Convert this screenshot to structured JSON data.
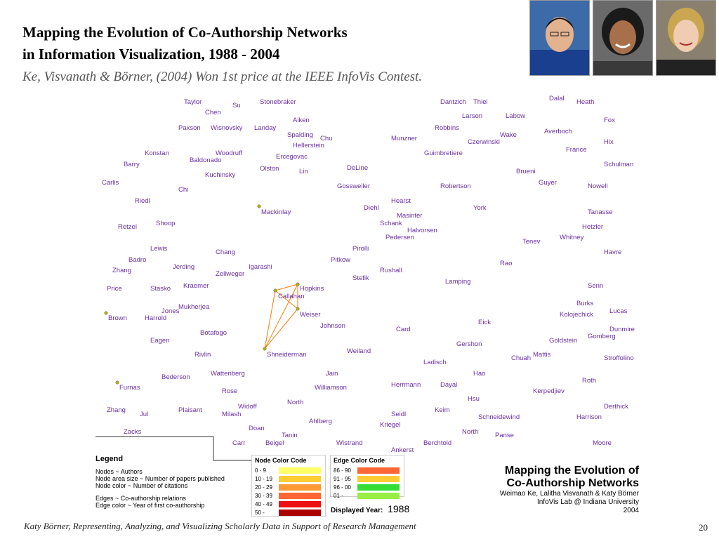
{
  "slide": {
    "title_line1": "Mapping the Evolution of  Co-Authorship Networks",
    "title_line2": "in Information Visualization, 1988 - 2004",
    "subtitle": "Ke, Visvanath & Börner, (2004) Won 1st price at the IEEE InfoVis Contest.",
    "footer": "Katy Börner, Representing, Analyzing, and Visualizing Scholarly Data in Support of  Research Management",
    "page_number": "20"
  },
  "colors": {
    "author_label": "#6b2fa3",
    "edge": "#ff7a00",
    "node": "#b8b400"
  },
  "authors": [
    "Taylor",
    "Su",
    "Stonebraker",
    "Dantzich",
    "Thiel",
    "Dalal",
    "Heath",
    "Chen",
    "Aiken",
    "Larson",
    "Labow",
    "Fox",
    "Paxson",
    "Wisnovsky",
    "Landay",
    "Robbins",
    "Averboch",
    "Spalding",
    "Chu",
    "Munzner",
    "Wake",
    "Czerwinski",
    "Hix",
    "Hellerstein",
    "France",
    "Konstan",
    "Woodruff",
    "Guimbretiere",
    "Ercegovac",
    "Barry",
    "Baldonado",
    "Schulman",
    "Olston",
    "Lin",
    "DeLine",
    "Brueni",
    "Kuchinsky",
    "Guyer",
    "Carlis",
    "Gossweiler",
    "Robertson",
    "Nowell",
    "Chi",
    "Riedl",
    "Hearst",
    "Diehl",
    "York",
    "Mackinlay",
    "Tanasse",
    "Masinter",
    "Retzel",
    "Shoop",
    "Schank",
    "Hetzler",
    "Halvorsen",
    "Pedersen",
    "Whitney",
    "Tenev",
    "Lewis",
    "Pirolli",
    "Chang",
    "Havre",
    "Badro",
    "Pitkow",
    "Rao",
    "Jerding",
    "Igarashi",
    "Zhang",
    "Rushall",
    "Zellweger",
    "Stefik",
    "Lamping",
    "Price",
    "Stasko",
    "Kraemer",
    "Hopkins",
    "Senn",
    "Callahan",
    "Burks",
    "Mukherjea",
    "Jones",
    "Lucas",
    "Kolojechick",
    "Weiser",
    "Brown",
    "Harrold",
    "Eick",
    "Johnson",
    "Dunmire",
    "Card",
    "Botafogo",
    "Gomberg",
    "Goldstein",
    "Eagen",
    "Gershon",
    "Weiland",
    "Rivlin",
    "Shneiderman",
    "Mattis",
    "Stroffolino",
    "Chuah",
    "Ladisch",
    "Wattenberg",
    "Jain",
    "Hao",
    "Bederson",
    "Roth",
    "Herrmann",
    "Dayal",
    "Furnas",
    "Rose",
    "Williamson",
    "Kerpedjiev",
    "Hsu",
    "North",
    "Widoff",
    "Derthick",
    "Zhang",
    "Keim",
    "Jul",
    "Plaisant",
    "Seidl",
    "Milash",
    "Schneidewind",
    "Harrison",
    "Ahlberg",
    "Kriegel",
    "Doan",
    "Zacks",
    "North",
    "Panse",
    "Tanin",
    "Carr",
    "Beigel",
    "Wistrand",
    "Berchtold",
    "Moore",
    "Ankerst"
  ],
  "legend": {
    "title": "Legend",
    "lines": [
      "Nodes ~ Authors",
      "Node  area size ~ Number of papers published",
      "Node color ~ Number of citations",
      "",
      "Edges ~ Co-authorship relations",
      "Edge color ~ Year of first co-authorship"
    ]
  },
  "node_color_code": {
    "title": "Node Color Code",
    "items": [
      {
        "label": "0 - 9",
        "color": "#ffff66"
      },
      {
        "label": "10 - 19",
        "color": "#ffcc33"
      },
      {
        "label": "20 - 29",
        "color": "#ff9933"
      },
      {
        "label": "30 - 39",
        "color": "#ff6633"
      },
      {
        "label": "40 - 49",
        "color": "#ee1111"
      },
      {
        "label": "50 -",
        "color": "#aa0000"
      }
    ]
  },
  "edge_color_code": {
    "title": "Edge Color Code",
    "items": [
      {
        "label": "86 - 90",
        "color": "#ff6633"
      },
      {
        "label": "91 - 95",
        "color": "#ffcc33"
      },
      {
        "label": "96 - 00",
        "color": "#33dd33"
      },
      {
        "label": "01 -",
        "color": "#99ee44"
      }
    ]
  },
  "displayed_year_label": "Displayed Year:",
  "displayed_year": "1988",
  "stamp": {
    "line1": "Mapping the Evolution of",
    "line2": "Co-Authorship Networks",
    "line3": "Weimao Ke, Lalitha Visvanath & Katy Börner",
    "line4": "InfoVis Lab @ Indiana University",
    "line5": "2004"
  }
}
